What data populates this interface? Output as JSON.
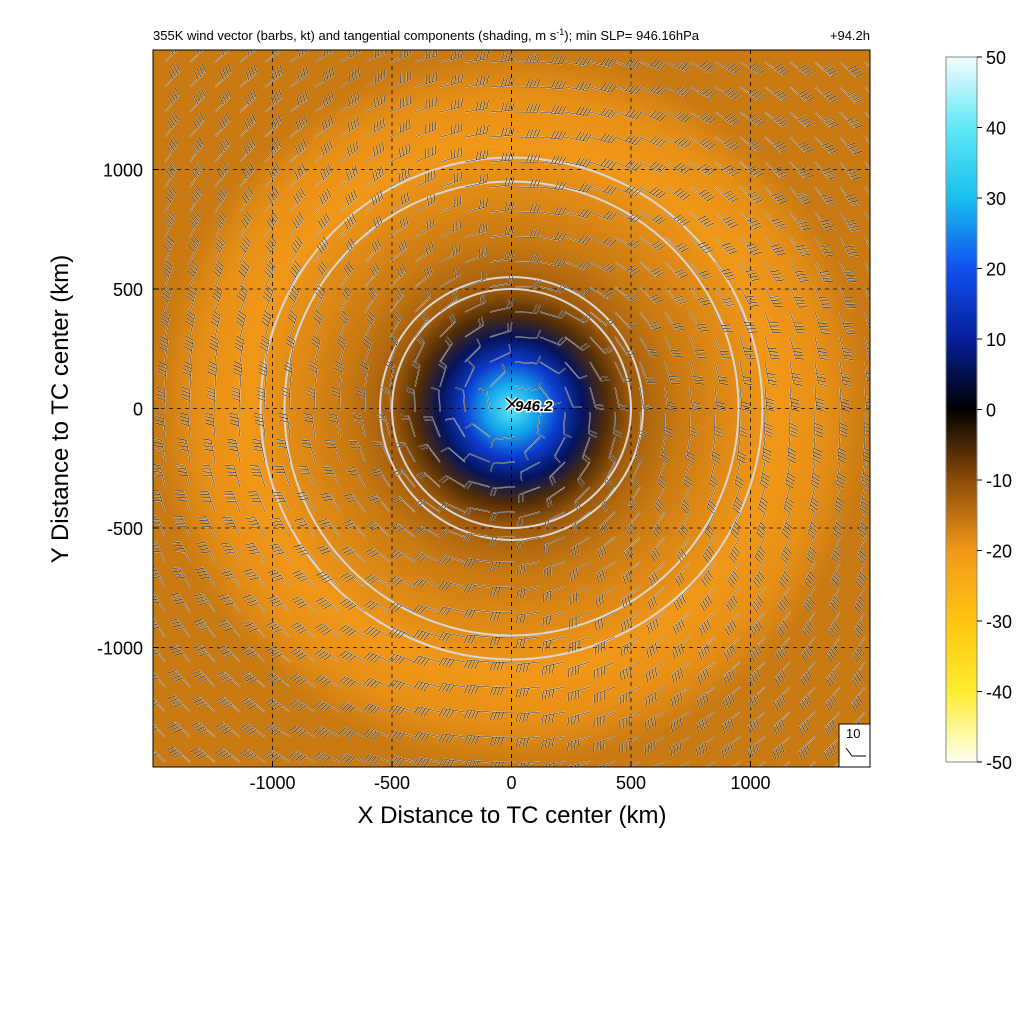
{
  "figure": {
    "title": "355K wind vector (barbs, kt) and tangential components (shading, m s",
    "title_sup": "-1",
    "title_tail": "); min SLP= 946.16hPa",
    "forecast_hour": "+94.2h"
  },
  "colors": {
    "background": "#ffffff",
    "negative_outer": "#c97a10",
    "negative_mid": "#e08c18",
    "near_zero": "#000000",
    "positive_low": "#0a2bd8",
    "positive_high": "#4fd8f0",
    "ring": "#d8d8d8"
  },
  "chart_data": {
    "type": "heatmap",
    "description_fields": [
      "wind barbs (kt)",
      "tangential wind shading (m s-1)"
    ],
    "xlabel": "X Distance to TC center (km)",
    "ylabel": "Y Distance to TC center (km)",
    "xlim": [
      -1500,
      1500
    ],
    "ylim": [
      -1500,
      1500
    ],
    "xticks": [
      -1000,
      -500,
      0,
      500,
      1000
    ],
    "yticks": [
      -1000,
      -500,
      0,
      500,
      1000
    ],
    "xtick_labels": [
      "-1000",
      "-500",
      "0",
      "500",
      "1000"
    ],
    "ytick_labels": [
      "-1000",
      "-500",
      "0",
      "500",
      "1000"
    ],
    "grid": true,
    "center": [
      0,
      0
    ],
    "min_slp_label": "946.2",
    "range_rings_km": [
      500,
      550,
      950,
      1050
    ],
    "reference_barb": "10",
    "radial_profile": {
      "radius_km": [
        0,
        100,
        200,
        300,
        400,
        500,
        700,
        900,
        1100,
        1300,
        1500
      ],
      "tangential_wind_ms": [
        40,
        28,
        16,
        6,
        -6,
        -12,
        -16,
        -18,
        -20,
        -19,
        -16
      ]
    },
    "colorbar": {
      "min": -50,
      "max": 50,
      "ticks": [
        50,
        40,
        30,
        20,
        10,
        0,
        -10,
        -20,
        -30,
        -40,
        -50
      ],
      "tick_labels": [
        "50",
        "40",
        "30",
        "20",
        "10",
        "0",
        "-10",
        "-20",
        "-30",
        "-40",
        "-50"
      ],
      "stops": [
        {
          "value": 50,
          "color": "#f4fdff"
        },
        {
          "value": 40,
          "color": "#5fe8f4"
        },
        {
          "value": 30,
          "color": "#18c0ee"
        },
        {
          "value": 20,
          "color": "#1050f0"
        },
        {
          "value": 10,
          "color": "#061f9a"
        },
        {
          "value": 0,
          "color": "#000000"
        },
        {
          "value": -10,
          "color": "#8c4c08"
        },
        {
          "value": -20,
          "color": "#f29818"
        },
        {
          "value": -30,
          "color": "#ffc410"
        },
        {
          "value": -40,
          "color": "#ffec30"
        },
        {
          "value": -50,
          "color": "#fffff0"
        }
      ]
    }
  }
}
